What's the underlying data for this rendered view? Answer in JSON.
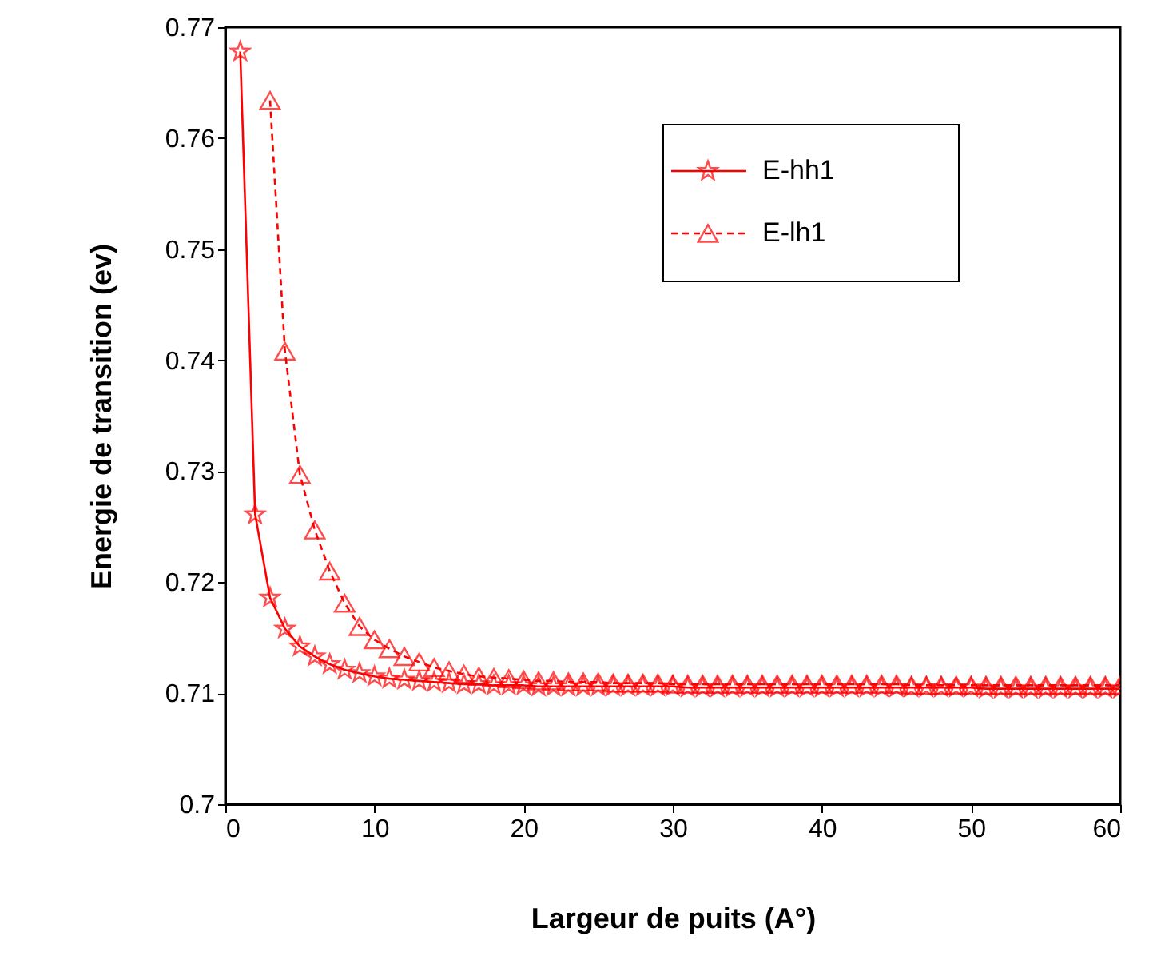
{
  "chart_data": {
    "type": "line",
    "xlabel": "Largeur de puits (A°)",
    "ylabel": "Energie de transition (ev)",
    "xlim": [
      0,
      60
    ],
    "ylim": [
      0.7,
      0.77
    ],
    "xticks": [
      0,
      10,
      20,
      30,
      40,
      50,
      60
    ],
    "yticks": [
      0.7,
      0.71,
      0.72,
      0.73,
      0.74,
      0.75,
      0.76,
      0.77
    ],
    "legend": "top right",
    "grid": false,
    "series": [
      {
        "name": "E-hh1",
        "color": "#ff0000",
        "marker": "star",
        "line_style": "solid",
        "x": [
          1,
          2,
          3,
          4,
          5,
          6,
          7,
          8,
          9,
          10,
          11,
          12,
          13,
          14,
          15,
          16,
          17,
          18,
          19,
          20,
          21,
          22,
          23,
          24,
          25,
          26,
          27,
          28,
          29,
          30,
          31,
          32,
          33,
          34,
          35,
          36,
          37,
          38,
          39,
          40,
          41,
          42,
          43,
          44,
          45,
          46,
          47,
          48,
          49,
          50,
          51,
          52,
          53,
          54,
          55,
          56,
          57,
          58,
          59,
          60
        ],
        "values": [
          0.7678,
          0.7261,
          0.7186,
          0.7158,
          0.7142,
          0.7133,
          0.7126,
          0.7121,
          0.7118,
          0.7115,
          0.7113,
          0.7112,
          0.7111,
          0.711,
          0.7109,
          0.7108,
          0.7108,
          0.7107,
          0.7107,
          0.7107,
          0.7106,
          0.7106,
          0.7106,
          0.7106,
          0.7106,
          0.7106,
          0.7106,
          0.7106,
          0.7106,
          0.7106,
          0.7105,
          0.7105,
          0.7105,
          0.7105,
          0.7105,
          0.7105,
          0.7105,
          0.7105,
          0.7105,
          0.7105,
          0.7105,
          0.7105,
          0.7105,
          0.7105,
          0.7105,
          0.7105,
          0.7105,
          0.7105,
          0.7105,
          0.7105,
          0.7104,
          0.7104,
          0.7104,
          0.7104,
          0.7104,
          0.7104,
          0.7104,
          0.7104,
          0.7104,
          0.7104
        ]
      },
      {
        "name": "E-lh1",
        "color": "#ff0000",
        "marker": "triangle",
        "line_style": "dashed",
        "x": [
          3,
          4,
          5,
          6,
          7,
          8,
          9,
          10,
          11,
          12,
          13,
          14,
          15,
          16,
          17,
          18,
          19,
          20,
          21,
          22,
          23,
          24,
          25,
          26,
          27,
          28,
          29,
          30,
          31,
          32,
          33,
          34,
          35,
          36,
          37,
          38,
          39,
          40,
          41,
          42,
          43,
          44,
          45,
          46,
          47,
          48,
          49,
          50,
          51,
          52,
          53,
          54,
          55,
          56,
          57,
          58,
          59,
          60
        ],
        "values": [
          0.7634,
          0.7408,
          0.7297,
          0.7247,
          0.721,
          0.7181,
          0.716,
          0.7148,
          0.714,
          0.7133,
          0.7128,
          0.7123,
          0.712,
          0.7117,
          0.7115,
          0.7114,
          0.7113,
          0.7112,
          0.7111,
          0.7111,
          0.711,
          0.711,
          0.711,
          0.7109,
          0.7109,
          0.7109,
          0.7109,
          0.7108,
          0.7108,
          0.7108,
          0.7108,
          0.7108,
          0.7108,
          0.7108,
          0.7108,
          0.7108,
          0.7108,
          0.7108,
          0.7108,
          0.7108,
          0.7108,
          0.7108,
          0.7108,
          0.7107,
          0.7107,
          0.7107,
          0.7107,
          0.7107,
          0.7107,
          0.7107,
          0.7107,
          0.7107,
          0.7107,
          0.7107,
          0.7107,
          0.7107,
          0.7107,
          0.7107
        ]
      }
    ]
  }
}
